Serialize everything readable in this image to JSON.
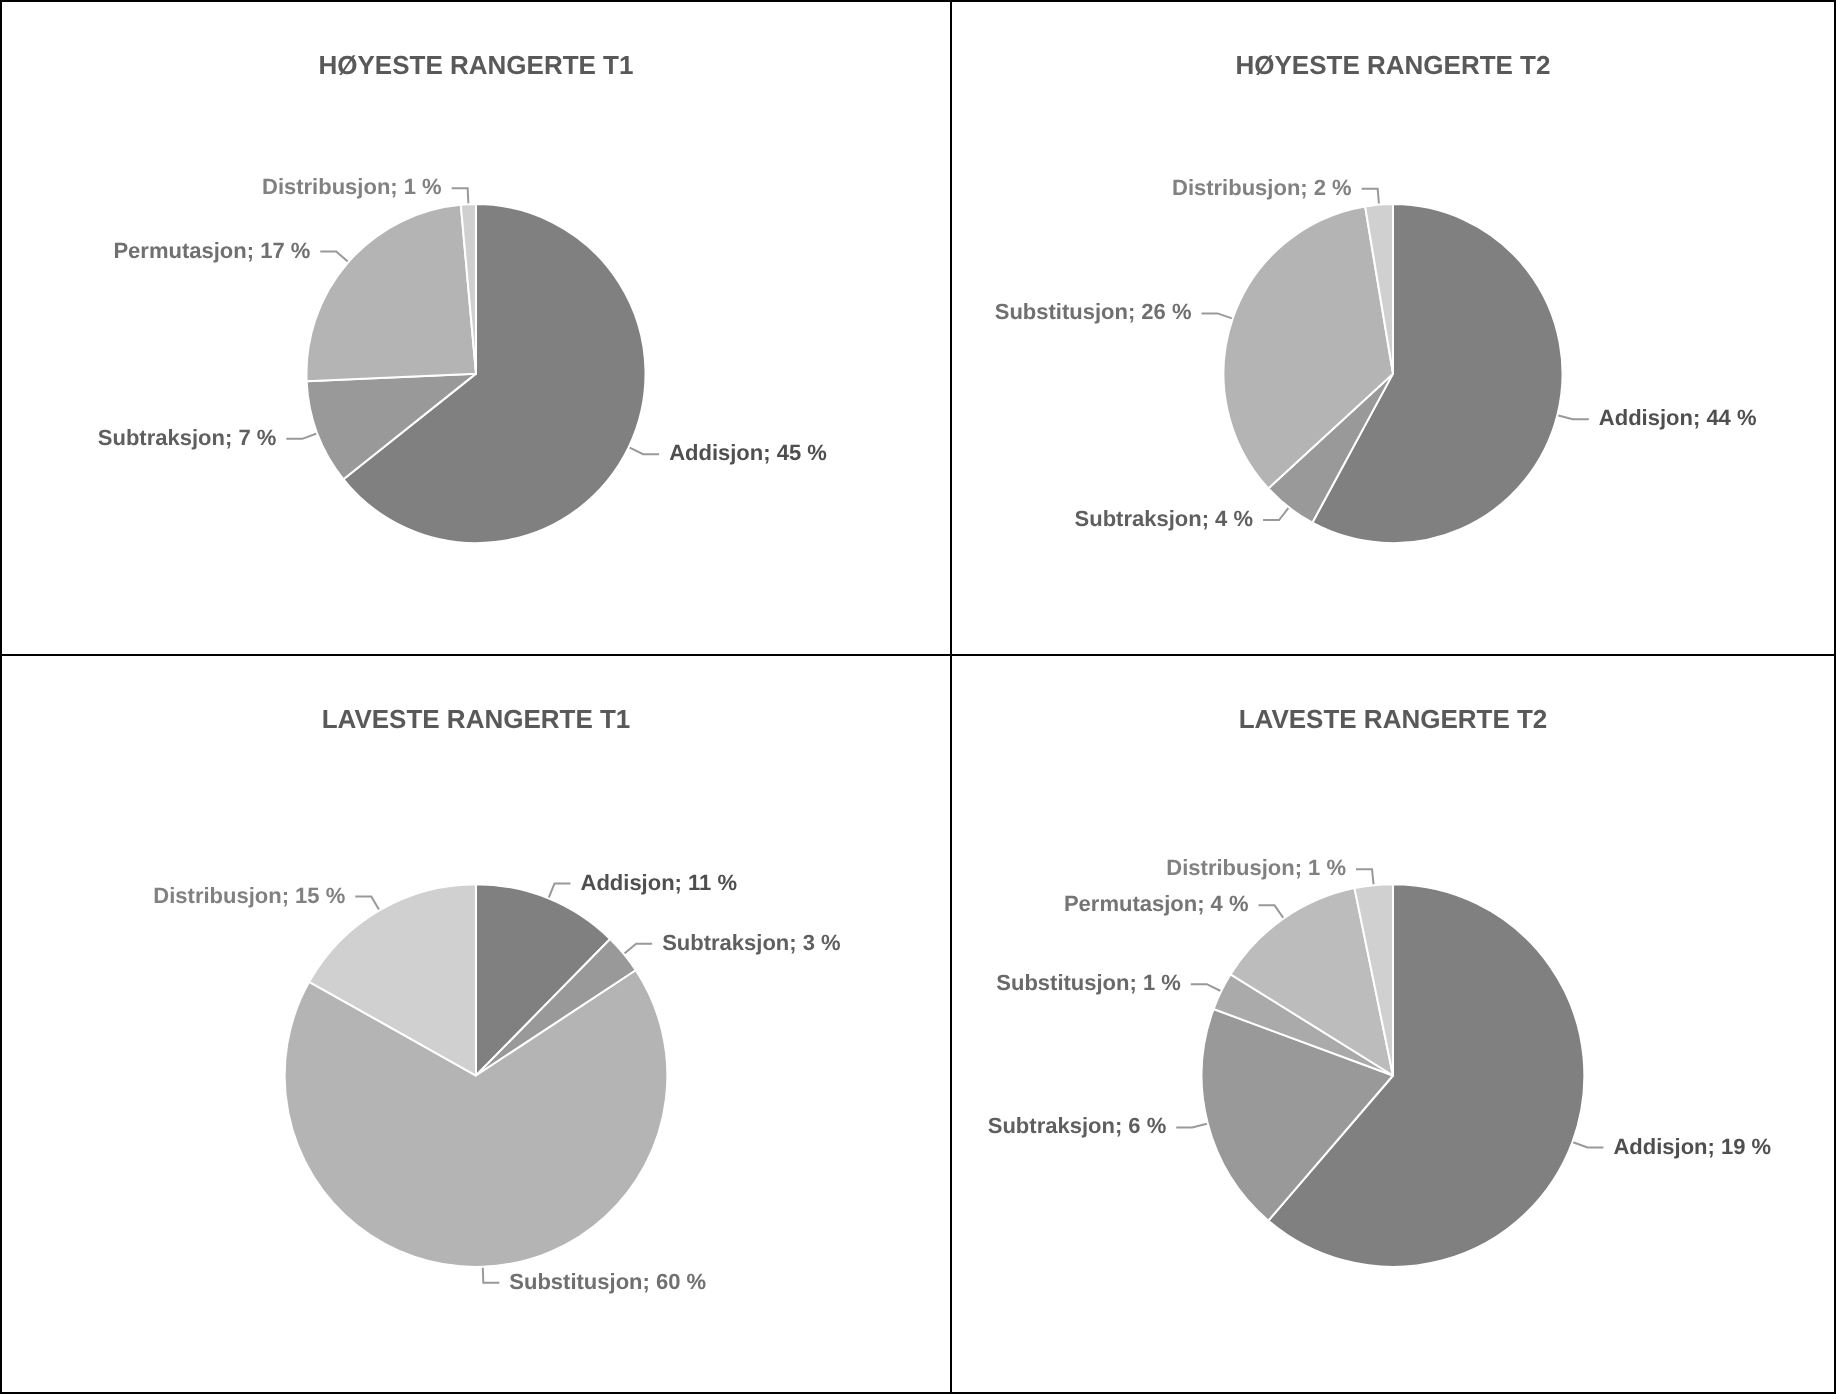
{
  "chart_data": [
    {
      "type": "pie",
      "title": "HØYESTE RANGERTE T1",
      "categories": [
        "Addisjon",
        "Subtraksjon",
        "Permutasjon",
        "Distribusjon"
      ],
      "values": [
        45,
        7,
        17,
        1
      ],
      "value_labels": [
        "45 %",
        "7 %",
        "17 %",
        "1 %"
      ],
      "colors": [
        "#808080",
        "#999999",
        "#b4b4b4",
        "#d0d0d0"
      ],
      "legend": false
    },
    {
      "type": "pie",
      "title": "HØYESTE RANGERTE T2",
      "categories": [
        "Addisjon",
        "Subtraksjon",
        "Substitusjon",
        "Distribusjon"
      ],
      "values": [
        44,
        4,
        26,
        2
      ],
      "value_labels": [
        "44 %",
        "4 %",
        "26 %",
        "2 %"
      ],
      "colors": [
        "#808080",
        "#999999",
        "#b4b4b4",
        "#d0d0d0"
      ],
      "legend": false
    },
    {
      "type": "pie",
      "title": "LAVESTE RANGERTE T1",
      "categories": [
        "Addisjon",
        "Subtraksjon",
        "Substitusjon",
        "Distribusjon"
      ],
      "values": [
        11,
        3,
        60,
        15
      ],
      "value_labels": [
        "11 %",
        "3 %",
        "60 %",
        "15 %"
      ],
      "colors": [
        "#808080",
        "#999999",
        "#b4b4b4",
        "#d0d0d0"
      ],
      "legend": false
    },
    {
      "type": "pie",
      "title": "LAVESTE RANGERTE T2",
      "categories": [
        "Addisjon",
        "Subtraksjon",
        "Substitusjon",
        "Permutasjon",
        "Distribusjon"
      ],
      "values": [
        19,
        6,
        1,
        4,
        1
      ],
      "value_labels": [
        "19 %",
        "6 %",
        "1 %",
        "4 %",
        "1 %"
      ],
      "colors": [
        "#808080",
        "#999999",
        "#aaaaaa",
        "#bcbcbc",
        "#d0d0d0"
      ],
      "legend": false
    }
  ]
}
